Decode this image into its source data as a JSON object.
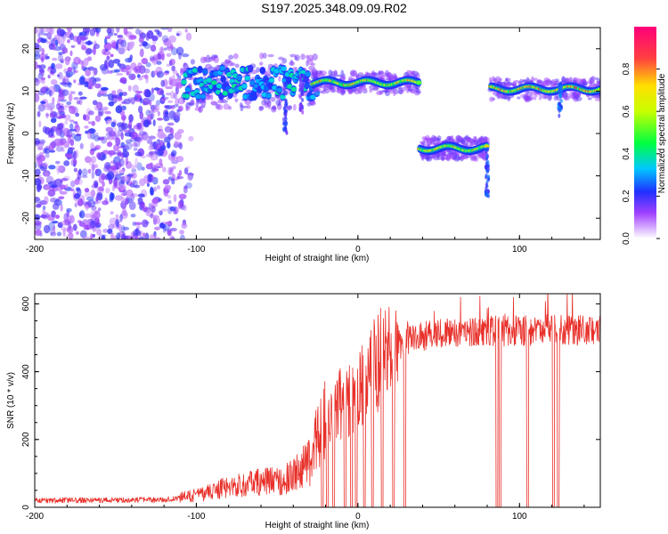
{
  "title": "S197.2025.348.09.09.R02",
  "chart_data": [
    {
      "type": "heatmap",
      "xlabel": "Height of straight line (km)",
      "ylabel": "Frequency (Hz)",
      "xlim": [
        -200,
        150
      ],
      "ylim": [
        -25,
        25
      ],
      "xticks": [
        -200,
        -100,
        0,
        100
      ],
      "yticks": [
        -20,
        -10,
        0,
        10,
        20
      ],
      "colorbar": {
        "label": "Normalized spectral amplitude",
        "range": [
          0,
          1
        ],
        "ticks": [
          "0.0",
          "0.2",
          "0.4",
          "0.6",
          "0.8"
        ]
      },
      "ridges": [
        {
          "name": "noise-region",
          "x": [
            -200,
            -105
          ],
          "freq_range": [
            -25,
            25
          ],
          "amplitude": 0.15
        },
        {
          "name": "scattered-ridge",
          "x": [
            -108,
            -25
          ],
          "freq_center": 12,
          "spread": 4,
          "amplitude": 0.35
        },
        {
          "name": "upper-ridge",
          "x": [
            -28,
            38
          ],
          "freq_center": 12,
          "amplitude": 0.75
        },
        {
          "name": "lower-ridge",
          "x": [
            38,
            80
          ],
          "freq_center": -3.5,
          "amplitude": 0.7
        },
        {
          "name": "right-ridge",
          "x": [
            82,
            150
          ],
          "freq_center": 10.5,
          "amplitude": 0.8
        }
      ]
    },
    {
      "type": "line",
      "xlabel": "Height of straight line (km)",
      "ylabel": "SNR (10 * v/v)",
      "xlim": [
        -200,
        150
      ],
      "ylim": [
        0,
        630
      ],
      "xticks": [
        -200,
        -100,
        0,
        100
      ],
      "yticks": [
        0,
        200,
        400,
        600
      ],
      "color": "#e8302a",
      "profile": {
        "x": [
          -200,
          -120,
          -100,
          -80,
          -60,
          -45,
          -30,
          -25,
          -20,
          -15,
          -10,
          -5,
          0,
          5,
          10,
          15,
          20,
          25,
          30,
          40,
          60,
          80,
          100,
          120,
          150
        ],
        "snr": [
          20,
          22,
          35,
          60,
          75,
          80,
          130,
          215,
          265,
          290,
          310,
          320,
          345,
          380,
          415,
          445,
          465,
          480,
          490,
          505,
          515,
          520,
          520,
          525,
          520
        ]
      },
      "dropouts_x": [
        -22,
        -19,
        -15,
        -8,
        -4,
        -1,
        4,
        9,
        15,
        22,
        29,
        86,
        88,
        105,
        121,
        124
      ]
    }
  ]
}
